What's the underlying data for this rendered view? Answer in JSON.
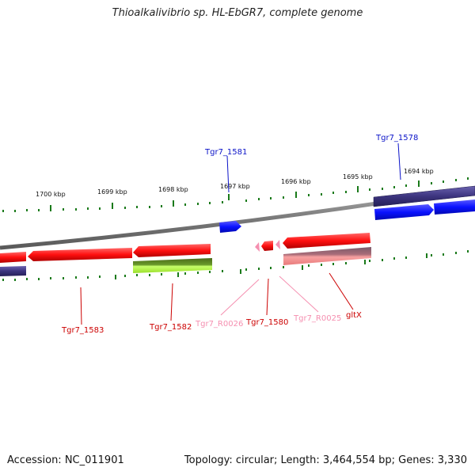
{
  "title": "Thioalkalivibrio sp. HL-EbGR7, complete genome",
  "footer": {
    "accession": "Accession: NC_011901",
    "summary": "Topology: circular; Length: 3,464,554 bp; Genes: 3,330"
  },
  "ticks": [
    "1700 kbp",
    "1699 kbp",
    "1698 kbp",
    "1697 kbp",
    "1696 kbp",
    "1695 kbp",
    "1694 kbp"
  ],
  "genes": {
    "tgr7_1581": "Tgr7_1581",
    "tgr7_1578": "Tgr7_1578",
    "tgr7_1583": "Tgr7_1583",
    "tgr7_1582": "Tgr7_1582",
    "tgr7_r0026": "Tgr7_R0026",
    "tgr7_1580": "Tgr7_1580",
    "tgr7_r0025": "Tgr7_R0025",
    "gltx": "gltX"
  },
  "colors": {
    "cds_forward": "#0a12ff",
    "cds_reverse": "#ff1010",
    "rna": "#f58fb0",
    "rrna_light": "#f08a8a",
    "dark_gene": "#3c347e",
    "green_gene": "#9adf2a",
    "backbone": "#8a8a8a",
    "tick_green": "#1a7a1a"
  }
}
